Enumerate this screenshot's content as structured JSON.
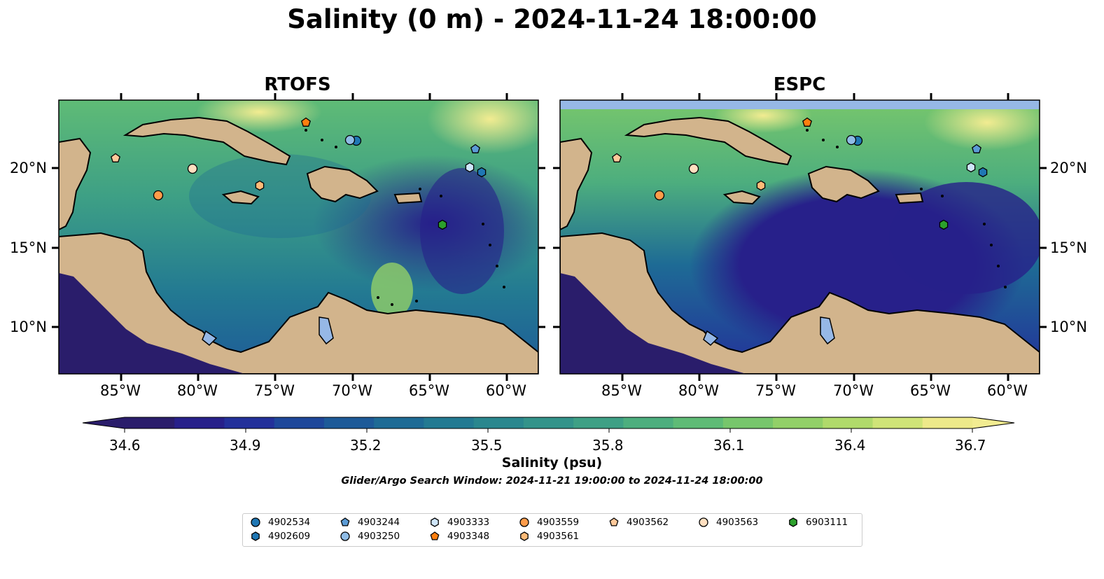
{
  "figure_title": "Salinity (0 m) - 2024-11-24 18:00:00",
  "panels": [
    {
      "title": "RTOFS"
    },
    {
      "title": "ESPC"
    }
  ],
  "axes": {
    "lon_ticks": [
      "85°W",
      "80°W",
      "75°W",
      "70°W",
      "65°W",
      "60°W"
    ],
    "lat_ticks": [
      "20°N",
      "15°N",
      "10°N"
    ]
  },
  "colorbar": {
    "ticks": [
      "34.6",
      "34.9",
      "35.2",
      "35.5",
      "35.8",
      "36.1",
      "36.4",
      "36.7"
    ],
    "label": "Salinity (psu)",
    "colors": [
      "#2a1d6b",
      "#27208a",
      "#23309a",
      "#1e479a",
      "#1d5a98",
      "#1e6b95",
      "#237a92",
      "#2a878e",
      "#33938a",
      "#3ea085",
      "#4dae7e",
      "#5fbb76",
      "#77c66c",
      "#92d068",
      "#b0da6b",
      "#cfe478",
      "#ede98a"
    ],
    "extend_low": "#2a1d6b",
    "extend_high": "#f2ec91"
  },
  "search_window": "Glider/Argo Search Window: 2024-11-21 19:00:00 to 2024-11-24 18:00:00",
  "legend": [
    {
      "label": "4902534",
      "marker": "circle",
      "color": "#1f77b4"
    },
    {
      "label": "4902609",
      "marker": "hexagon",
      "color": "#1f77b4"
    },
    {
      "label": "4903244",
      "marker": "pentagon",
      "color": "#5b9bd5"
    },
    {
      "label": "4903250",
      "marker": "circle",
      "color": "#8fbce6"
    },
    {
      "label": "4903333",
      "marker": "hexagon",
      "color": "#cfe6fb"
    },
    {
      "label": "4903348",
      "marker": "pentagon",
      "color": "#ff7f0e"
    },
    {
      "label": "4903559",
      "marker": "circle",
      "color": "#ff9c4a"
    },
    {
      "label": "4903561",
      "marker": "hexagon",
      "color": "#ffbb78"
    },
    {
      "label": "4903562",
      "marker": "pentagon",
      "color": "#ffc99a"
    },
    {
      "label": "4903563",
      "marker": "circle",
      "color": "#ffdfc0"
    },
    {
      "label": "6903111",
      "marker": "hexagon",
      "color": "#2ca02c"
    }
  ],
  "colors": {
    "land": "#d2b48c",
    "lake": "#96b8e6",
    "coast": "#000000",
    "deep_sea": "#2a1d6b"
  }
}
